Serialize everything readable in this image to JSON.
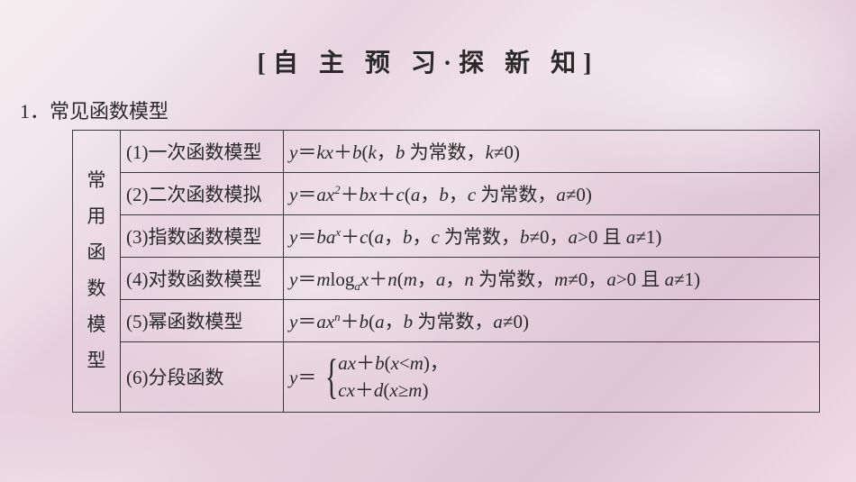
{
  "title": "[自 主 预 习·探 新 知]",
  "section": "1．常见函数模型",
  "sideLabel": "常用函数模型",
  "border_color": "#3a3a3a",
  "text_color": "#2a2a2a",
  "title_fontsize": 28,
  "section_fontsize": 22,
  "cell_fontsize": 21,
  "table": {
    "rows": [
      {
        "name_plain": "(1)一次函数模型",
        "name_html": "<span class='upright'>(1)一次函数模型</span>",
        "formula_plain": "y＝kx＋b(k，b 为常数，k≠0)",
        "formula_html": "y<span class='upright'>＝</span>kx<span class='upright'>＋</span>b<span class='upright'>(</span>k<span class='upright'>，</span>b <span class='upright'>为常数，</span>k<span class='upright'>≠0)</span>"
      },
      {
        "name_plain": "(2)二次函数模拟",
        "name_html": "<span class='upright'>(2)二次函数模拟</span>",
        "formula_plain": "y＝ax²＋bx＋c(a，b，c 为常数，a≠0)",
        "formula_html": "y<span class='upright'>＝</span>ax<sup>2</sup><span class='upright'>＋</span>bx<span class='upright'>＋</span>c<span class='upright'>(</span>a<span class='upright'>，</span>b<span class='upright'>，</span>c <span class='upright'>为常数，</span>a<span class='upright'>≠0)</span>"
      },
      {
        "name_plain": "(3)指数函数模型",
        "name_html": "<span class='upright'>(3)指数函数模型</span>",
        "formula_plain": "y＝baˣ＋c(a，b，c 为常数，b≠0，a>0 且 a≠1)",
        "formula_html": "y<span class='upright'>＝</span>ba<sup>x</sup><span class='upright'>＋</span>c<span class='upright'>(</span>a<span class='upright'>，</span>b<span class='upright'>，</span>c <span class='upright'>为常数，</span>b<span class='upright'>≠0，</span>a<span class='upright'>&gt;0 且 </span>a<span class='upright'>≠1)</span>"
      },
      {
        "name_plain": "(4)对数函数模型",
        "name_html": "<span class='upright'>(4)对数函数模型</span>",
        "formula_plain": "y＝mlogₐx＋n(m，a，n 为常数，m≠0，a>0 且 a≠1)",
        "formula_html": "y<span class='upright'>＝</span>m<span class='upright'>log</span><sub>a</sub>x<span class='upright'>＋</span>n<span class='upright'>(</span>m<span class='upright'>，</span>a<span class='upright'>，</span>n <span class='upright'>为常数，</span>m<span class='upright'>≠0，</span>a<span class='upright'>&gt;0 且 </span>a<span class='upright'>≠1)</span>"
      },
      {
        "name_plain": "(5)幂函数模型",
        "name_html": "<span class='upright'>(5)幂函数模型</span>",
        "formula_plain": "y＝axⁿ＋b(a，b 为常数，a≠0)",
        "formula_html": "y<span class='upright'>＝</span>ax<sup>n</sup><span class='upright'>＋</span>b<span class='upright'>(</span>a<span class='upright'>，</span>b <span class='upright'>为常数，</span>a<span class='upright'>≠0)</span>"
      },
      {
        "name_plain": "(6)分段函数",
        "name_html": "<span class='upright'>(6)分段函数</span>",
        "formula_plain": "y＝{ ax＋b(x<m)， cx＋d(x≥m) }",
        "formula_html": "<span class='piecewise'><span class='yeq'>y<span class='upright'>＝</span></span><span class='brace'>{</span><span class='cases'><span>ax<span class='upright'>＋</span>b<span class='upright'>(</span>x<span class='upright'>&lt;</span>m<span class='upright'>)，</span></span><span>cx<span class='upright'>＋</span>d<span class='upright'>(</span>x<span class='upright'>≥</span>m<span class='upright'>)</span></span></span></span>"
      }
    ]
  }
}
